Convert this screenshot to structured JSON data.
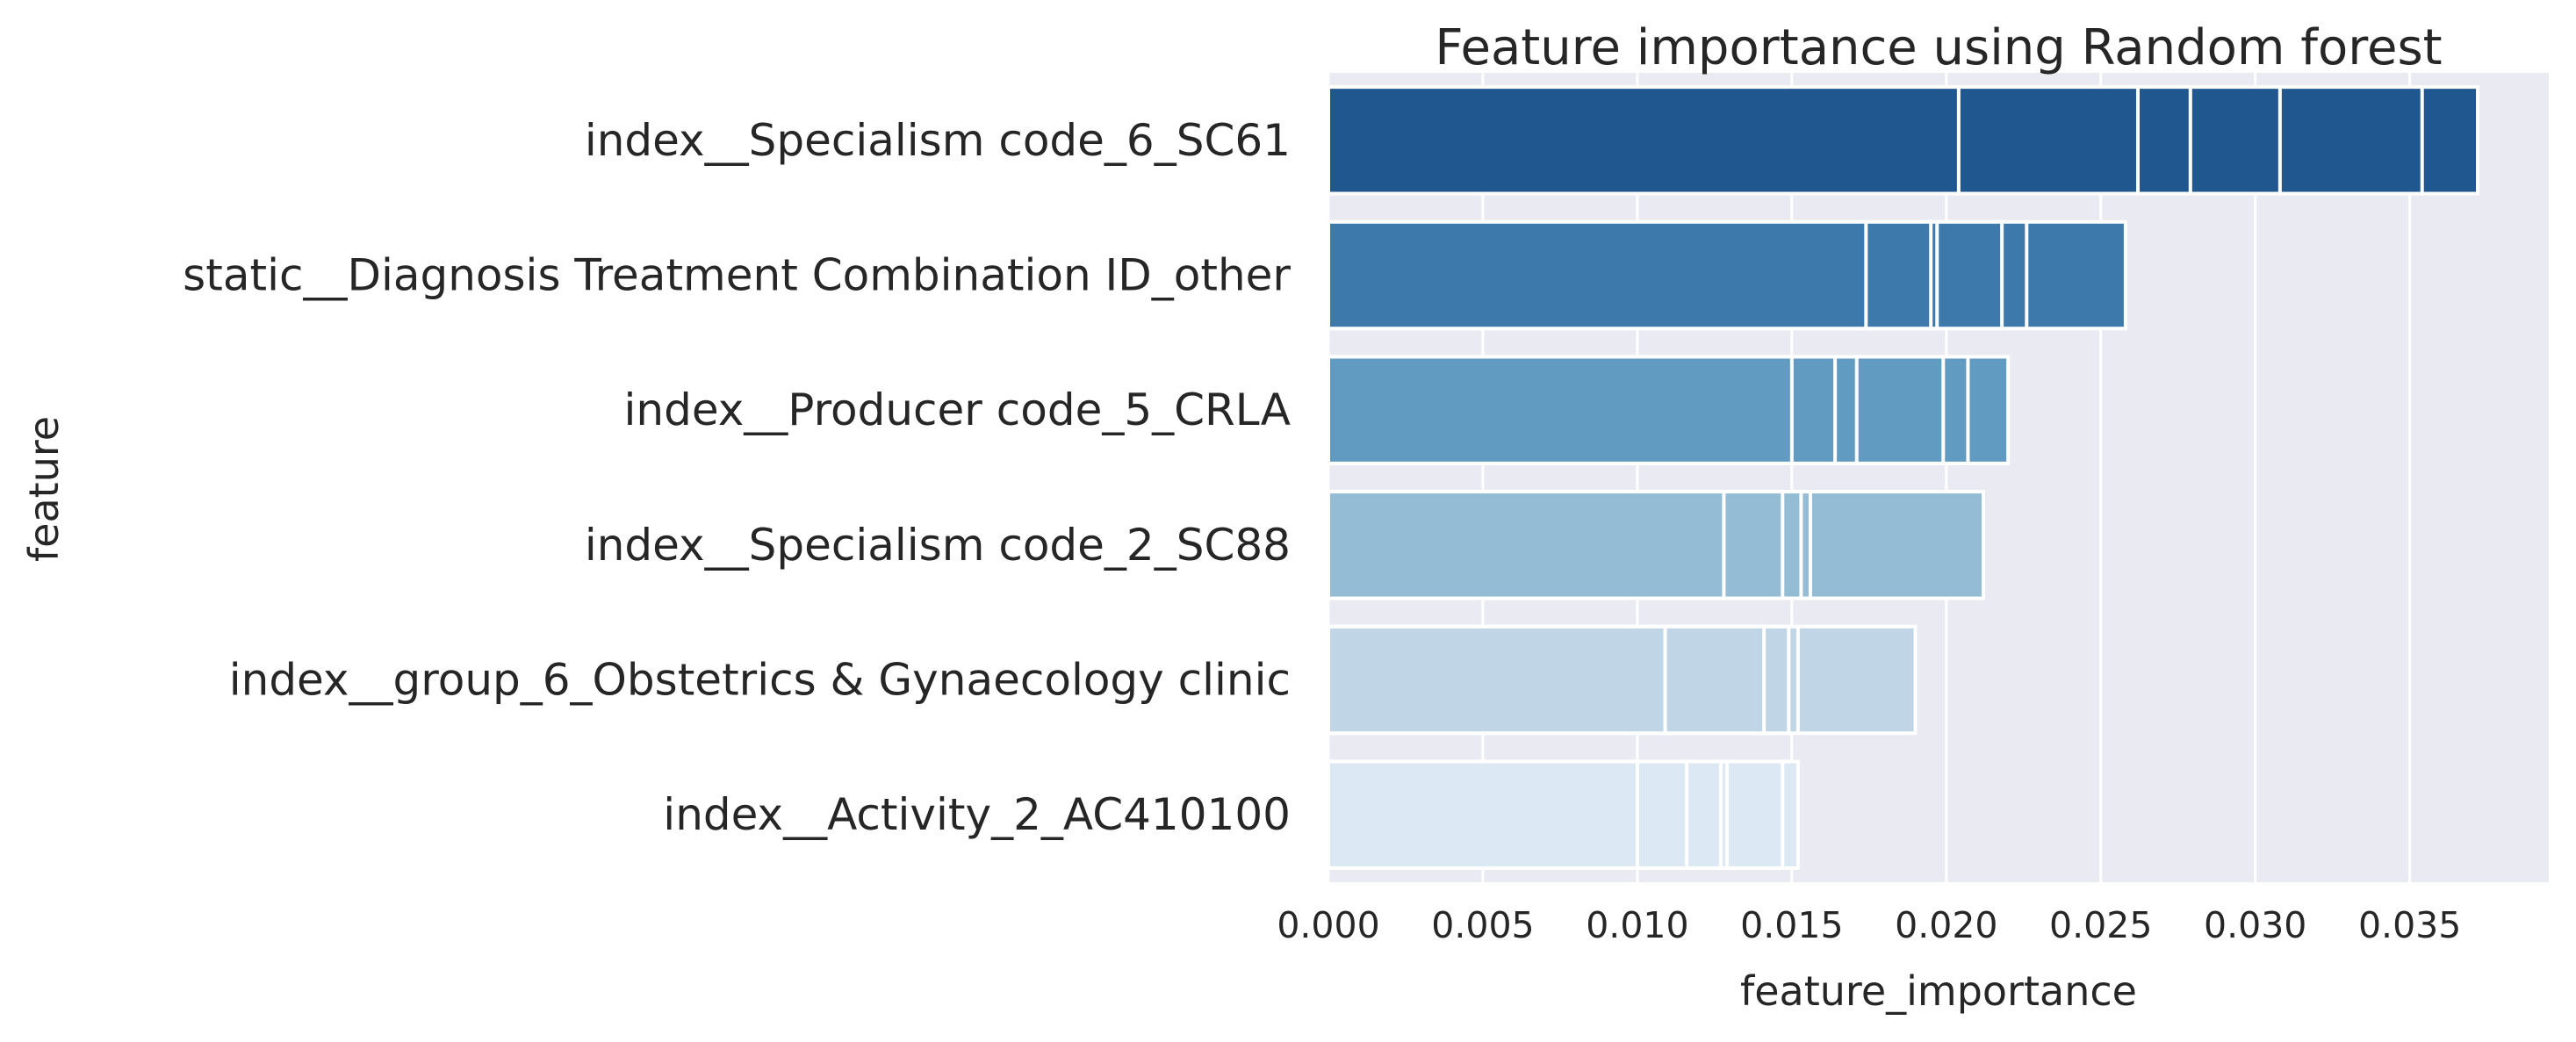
{
  "chart_data": {
    "type": "bar",
    "orientation": "horizontal",
    "title": "Feature importance using Random forest",
    "xlabel": "feature_importance",
    "ylabel": "feature",
    "xlim": [
      0,
      0.0395
    ],
    "xticks": [
      "0.000",
      "0.005",
      "0.010",
      "0.015",
      "0.020",
      "0.025",
      "0.030",
      "0.035"
    ],
    "grid": true,
    "categories": [
      "index__Specialism code_6_SC61",
      "static__Diagnosis Treatment Combination ID_other",
      "index__Producer code_5_CRLA",
      "index__Specialism code_2_SC88",
      "index__group_6_Obstetrics & Gynaecology clinic",
      "index__Activity_2_AC410100"
    ],
    "overlaid_values": [
      [
        0.0372,
        0.0354,
        0.0308,
        0.0279,
        0.0262,
        0.0204
      ],
      [
        0.0258,
        0.0226,
        0.0218,
        0.0197,
        0.0195,
        0.0174
      ],
      [
        0.022,
        0.0207,
        0.0199,
        0.0171,
        0.0164,
        0.015
      ],
      [
        0.0212,
        0.0156,
        0.0153,
        0.0147,
        0.0128
      ],
      [
        0.019,
        0.0152,
        0.0149,
        0.0141,
        0.0109
      ],
      [
        0.0152,
        0.0147,
        0.0129,
        0.0127,
        0.0116,
        0.01
      ]
    ],
    "colors": [
      "#21578f",
      "#3d7aab",
      "#629bc1",
      "#94bcd5",
      "#c0d6e7",
      "#dce8f3"
    ],
    "plot_background": "#eaeaf2",
    "grid_color": "#ffffff"
  }
}
